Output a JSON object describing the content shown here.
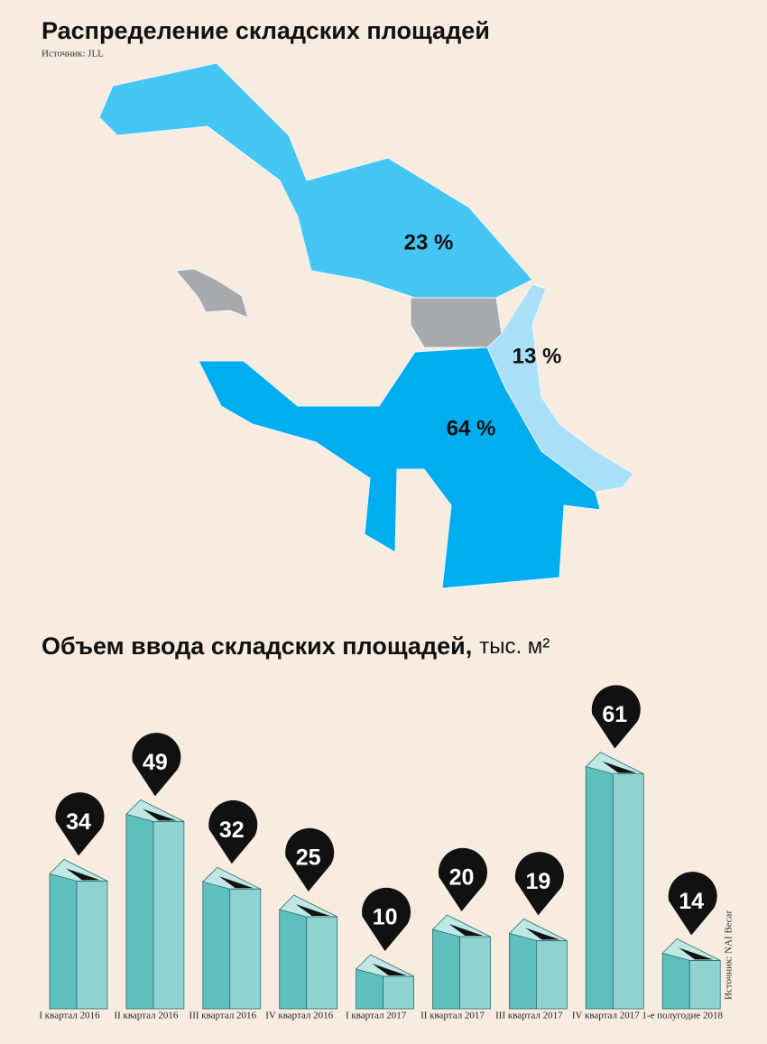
{
  "chart_data": [
    {
      "type": "map",
      "title": "Распределение складских площадей",
      "source": "Источник: JLL",
      "values": [
        23,
        13,
        64
      ],
      "value_labels": [
        "23 %",
        "13 %",
        "64 %"
      ],
      "colors": [
        "#45c6f2",
        "#a9e0f7",
        "#00aeef"
      ]
    },
    {
      "type": "bar",
      "title": "Объем ввода складских площадей,",
      "unit": "тыс. м²",
      "source": "Источник: NAI Becar",
      "categories": [
        "I квартал 2016",
        "II квартал 2016",
        "III квартал 2016",
        "IV квартал 2016",
        "I квартал 2017",
        "II квартал 2017",
        "III квартал 2017",
        "IV квартал 2017",
        "1-е полугодие 2018"
      ],
      "values": [
        34,
        49,
        32,
        25,
        10,
        20,
        19,
        61,
        14
      ],
      "color": "#8fd3d0"
    }
  ]
}
